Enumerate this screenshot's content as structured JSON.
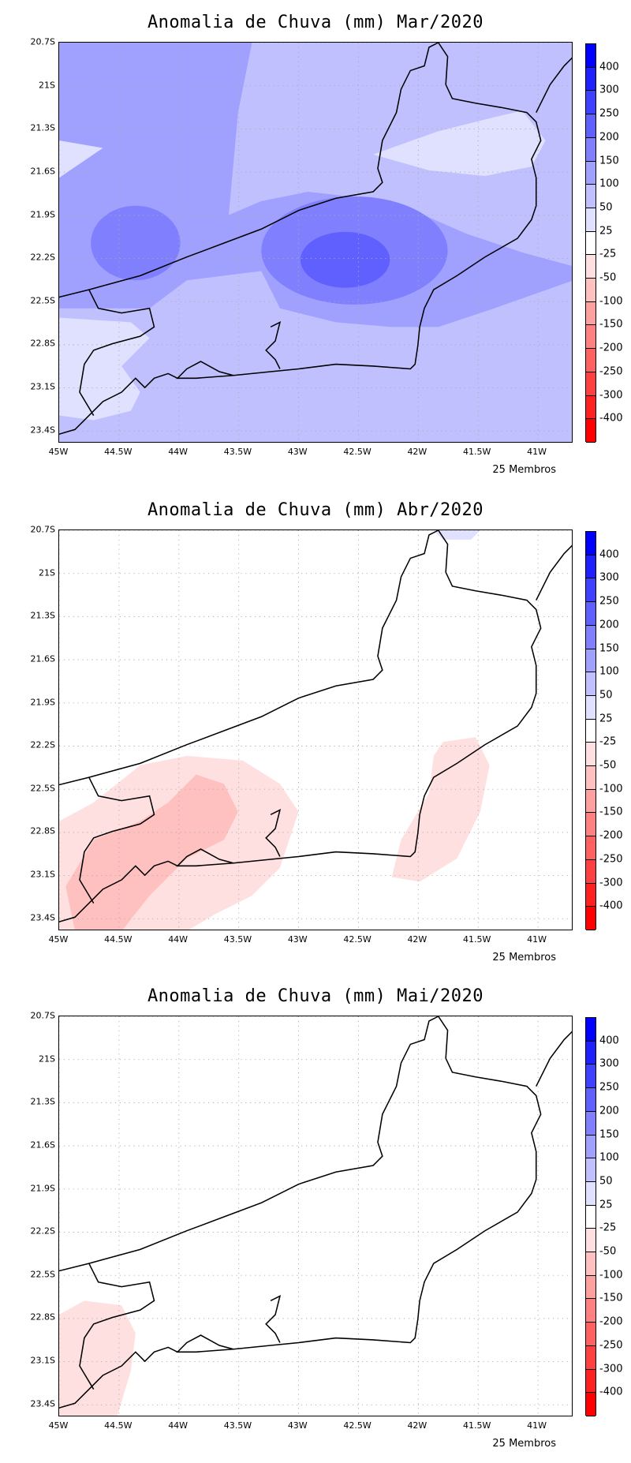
{
  "panels": [
    {
      "title": "Anomalia de Chuva (mm) Mar/2020",
      "footer": "25 Membros",
      "background": "#c0c0ff"
    },
    {
      "title": "Anomalia de Chuva (mm) Abr/2020",
      "footer": "25 Membros",
      "background": "#ffffff"
    },
    {
      "title": "Anomalia de Chuva (mm) Mai/2020",
      "footer": "25 Membros",
      "background": "#ffffff"
    }
  ],
  "chart_data": {
    "type": "heatmap",
    "xlabel": "",
    "ylabel": "",
    "x_ticks": [
      "45W",
      "44.5W",
      "44W",
      "43.5W",
      "43W",
      "42.5W",
      "42W",
      "41.5W",
      "41W"
    ],
    "x_tick_values": [
      -45,
      -44.5,
      -44,
      -43.5,
      -43,
      -42.5,
      -42,
      -41.5,
      -41
    ],
    "y_ticks": [
      "20.7S",
      "21S",
      "21.3S",
      "21.6S",
      "21.9S",
      "22.2S",
      "22.5S",
      "22.8S",
      "23.1S",
      "23.4S"
    ],
    "y_tick_values": [
      -20.7,
      -21,
      -21.3,
      -21.6,
      -21.9,
      -22.2,
      -22.5,
      -22.8,
      -23.1,
      -23.4
    ],
    "xlim": [
      -45,
      -40.7
    ],
    "ylim": [
      -23.5,
      -20.7
    ],
    "grid": true,
    "legend": {
      "placement": "right",
      "labels": [
        "400",
        "300",
        "250",
        "200",
        "150",
        "100",
        "50",
        "25",
        "-25",
        "-50",
        "-100",
        "-150",
        "-200",
        "-250",
        "-300",
        "-400"
      ],
      "colors": [
        "#0000ff",
        "#2020ff",
        "#4040ff",
        "#6060ff",
        "#8080ff",
        "#a0a0ff",
        "#c0c0ff",
        "#e0e0ff",
        "#ffffff",
        "#ffe0e0",
        "#ffc0c0",
        "#ffa0a0",
        "#ff8080",
        "#ff6060",
        "#ff4040",
        "#ff2020",
        "#ff0000"
      ]
    },
    "summary": [
      {
        "month": "Mar/2020",
        "range_mm": [
          25,
          250
        ],
        "dominant_mm": "50 to 100",
        "max_mm": "200 to 250 near 42.5W 22.3S"
      },
      {
        "month": "Abr/2020",
        "range_mm": [
          -100,
          50
        ],
        "dominant_mm": "-25 to 25",
        "min_mm": "-50 to -100 near 44.2W 22.9S"
      },
      {
        "month": "Mai/2020",
        "range_mm": [
          -50,
          25
        ],
        "dominant_mm": "-25 to 25",
        "min_mm": "-25 to -50 near 44.8W 23.1S"
      }
    ]
  }
}
